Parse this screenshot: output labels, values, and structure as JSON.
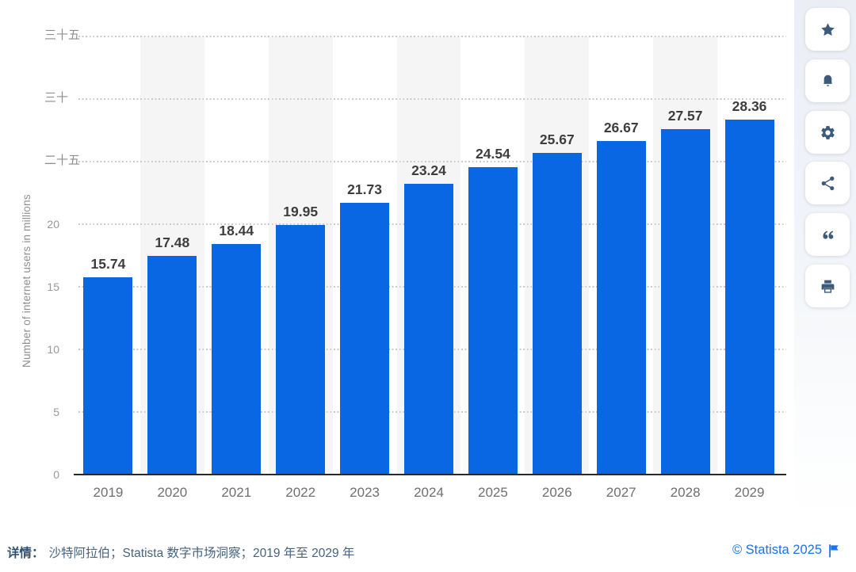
{
  "chart_data": {
    "type": "bar",
    "title": "",
    "xlabel": "",
    "ylabel": "Number of internet users in millions",
    "categories": [
      "2019",
      "2020",
      "2021",
      "2022",
      "2023",
      "2024",
      "2025",
      "2026",
      "2027",
      "2028",
      "2029"
    ],
    "values": [
      15.74,
      17.48,
      18.44,
      19.95,
      21.73,
      23.24,
      24.54,
      25.67,
      26.67,
      27.57,
      28.36
    ],
    "ylim": [
      0,
      35
    ],
    "yticks": [
      {
        "value": 35,
        "label": "三十五"
      },
      {
        "value": 30,
        "label": "三十"
      },
      {
        "value": 25,
        "label": "二十五"
      },
      {
        "value": 20,
        "label": "20"
      },
      {
        "value": 15,
        "label": "15"
      },
      {
        "value": 10,
        "label": "10"
      },
      {
        "value": 5,
        "label": "5"
      },
      {
        "value": 0,
        "label": "0"
      }
    ],
    "grid": "horizontal-dotted",
    "legend": "none",
    "value_labels": true,
    "bar_color": "#0a67e4",
    "column_stripes": "light gray bands behind 2020, 2022, 2024, 2026, 2028"
  },
  "sidebar": {
    "buttons": [
      {
        "id": "favorite",
        "icon": "star-icon"
      },
      {
        "id": "notifications",
        "icon": "bell-icon"
      },
      {
        "id": "settings",
        "icon": "gear-icon"
      },
      {
        "id": "share",
        "icon": "share-icon"
      },
      {
        "id": "cite",
        "icon": "quote-icon"
      },
      {
        "id": "print",
        "icon": "print-icon"
      }
    ]
  },
  "footer": {
    "details_label": "详情：",
    "details_text": "沙特阿拉伯；Statista 数字市场洞察；2019 年至 2029 年",
    "copyright": "© Statista 2025",
    "flag_icon": "report-flag-icon"
  },
  "colors": {
    "bar_blue": "#0a67e4",
    "accent_blue": "#1a73e8",
    "icon_slate": "#3d5a7a",
    "stripe_gray": "#f5f5f6",
    "grid_dot_gray": "#c9c9c9",
    "axis_line_dark": "#2a2a2a"
  }
}
